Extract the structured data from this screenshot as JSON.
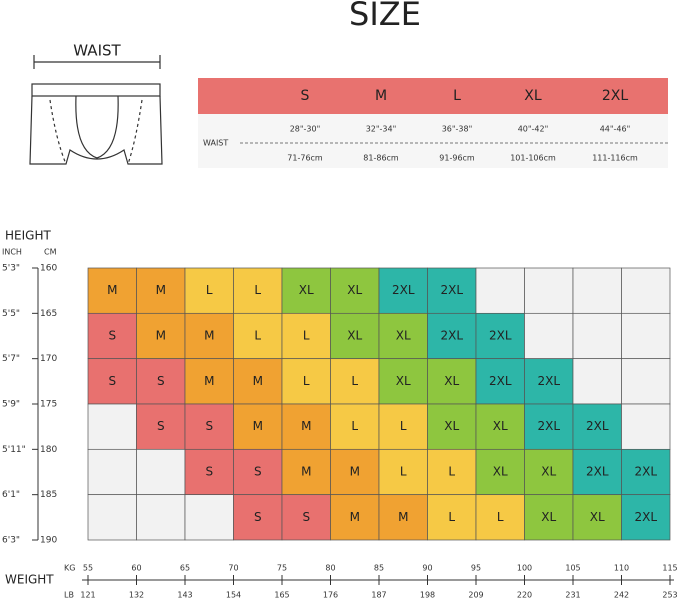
{
  "title": "SIZE",
  "waist_label": "WAIST",
  "size_table": {
    "sizes": [
      "S",
      "M",
      "L",
      "XL",
      "2XL"
    ],
    "row_label": "WAIST",
    "inches": [
      "28\"-30\"",
      "32\"-34\"",
      "36\"-38\"",
      "40\"-42\"",
      "44\"-46\""
    ],
    "cm": [
      "71-76cm",
      "81-86cm",
      "91-96cm",
      "101-106cm",
      "111-116cm"
    ]
  },
  "height": {
    "title": "HEIGHT",
    "inch_unit": "INCH",
    "cm_unit": "CM",
    "inches": [
      "5'3\"",
      "5'5\"",
      "5'7\"",
      "5'9\"",
      "5'11\"",
      "6'1\"",
      "6'3\""
    ],
    "cm": [
      160,
      165,
      170,
      175,
      180,
      185,
      190
    ]
  },
  "grid": {
    "rows": [
      [
        "M",
        "M",
        "L",
        "L",
        "XL",
        "XL",
        "2XL",
        "2XL",
        null,
        null,
        null,
        null
      ],
      [
        "S",
        "M",
        "M",
        "L",
        "L",
        "XL",
        "XL",
        "2XL",
        "2XL",
        null,
        null,
        null
      ],
      [
        "S",
        "S",
        "M",
        "M",
        "L",
        "L",
        "XL",
        "XL",
        "2XL",
        "2XL",
        null,
        null
      ],
      [
        null,
        "S",
        "S",
        "M",
        "M",
        "L",
        "L",
        "XL",
        "XL",
        "2XL",
        "2XL",
        null
      ],
      [
        null,
        null,
        "S",
        "S",
        "M",
        "M",
        "L",
        "L",
        "XL",
        "XL",
        "2XL",
        "2XL"
      ],
      [
        null,
        null,
        null,
        "S",
        "S",
        "M",
        "M",
        "L",
        "L",
        "XL",
        "XL",
        "2XL"
      ]
    ],
    "colors": {
      "S": "#e8716f",
      "M": "#f0a232",
      "L": "#f6c945",
      "XL": "#8ec63f",
      "2XL": "#2db6a8"
    },
    "empty_color": "#f2f2f2"
  },
  "weight": {
    "title": "WEIGHT",
    "kg_unit": "KG",
    "lb_unit": "LB",
    "kg": [
      55,
      60,
      65,
      70,
      75,
      80,
      85,
      90,
      95,
      100,
      105,
      110,
      115
    ],
    "lb": [
      121,
      132,
      143,
      154,
      165,
      176,
      187,
      198,
      209,
      220,
      231,
      242,
      253
    ]
  }
}
